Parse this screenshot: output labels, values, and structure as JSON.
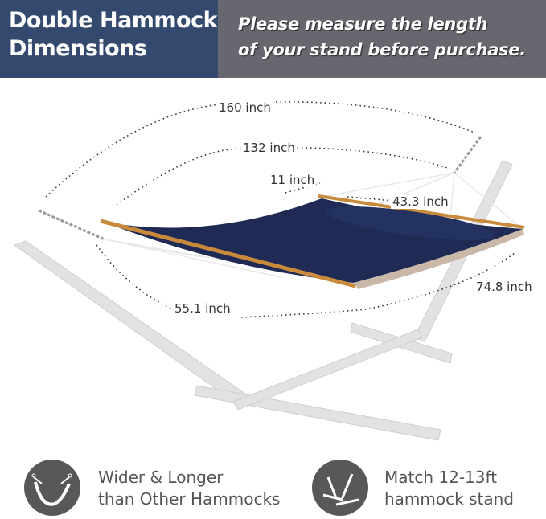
{
  "header": {
    "title_line1": "Double Hammock",
    "title_line2": "Dimensions",
    "note_line1": "Please measure the length",
    "note_line2": "of your stand before purchase."
  },
  "dimensions": {
    "overall_length": "160 inch",
    "bed_length": "132 inch",
    "pillow": "11 inch",
    "pillow_width": "43.3 inch",
    "bed_width": "55.1 inch",
    "bed_diagonal": "74.8 inch"
  },
  "colors": {
    "header_blue": "#34496e",
    "header_gray": "#67676f",
    "hammock_navy": "#1f2b55",
    "stand_gray": "#dcdcdc"
  },
  "features": [
    {
      "icon": "hammock-icon",
      "line1": "Wider & Longer",
      "line2": "than Other Hammocks"
    },
    {
      "icon": "stand-icon",
      "line1": "Match 12-13ft",
      "line2": "hammock stand"
    }
  ]
}
